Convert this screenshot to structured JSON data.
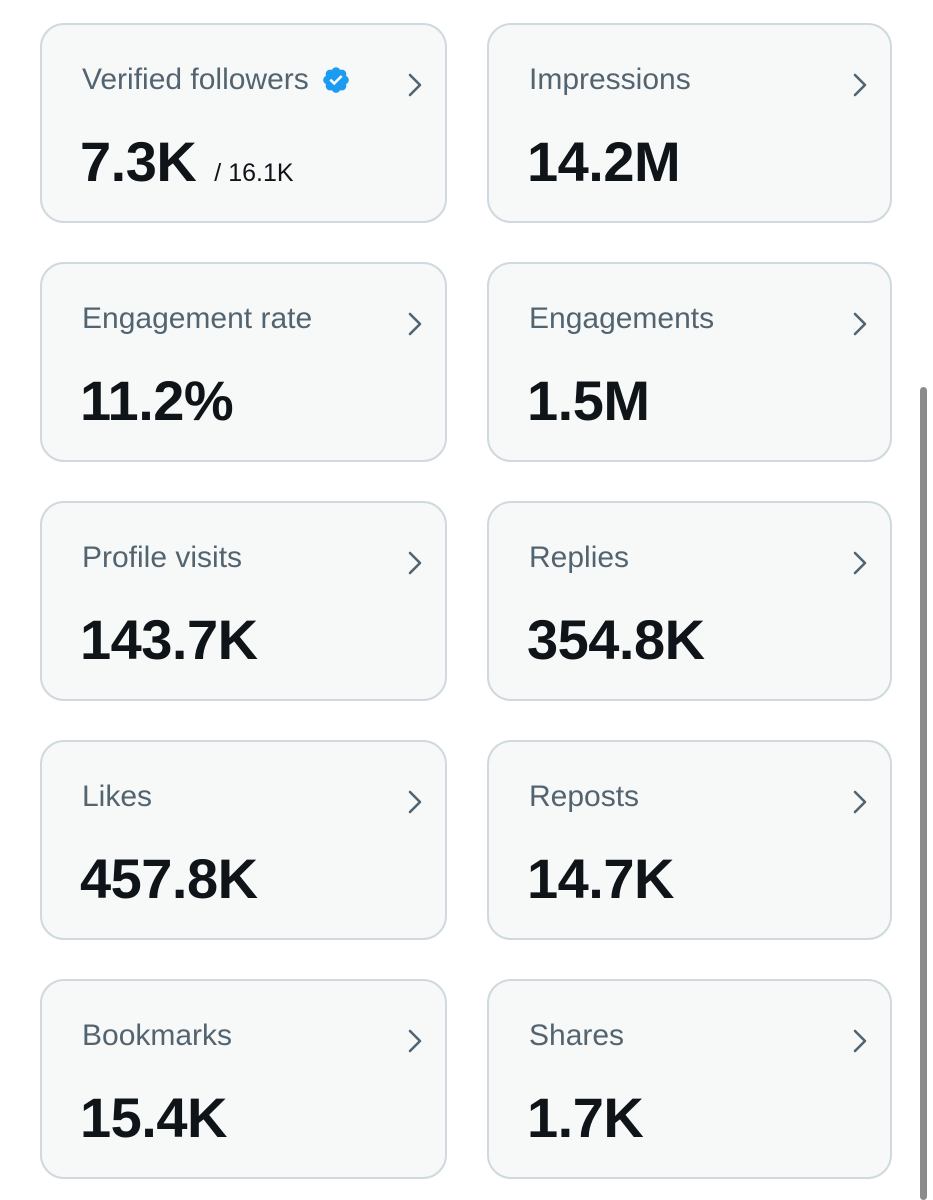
{
  "colors": {
    "card_bg": "#f7f9f9",
    "card_border": "#cfd9de",
    "label": "#536471",
    "value": "#0f1419",
    "verified_badge": "#1d9bf0"
  },
  "cards": [
    {
      "label": "Verified followers",
      "value": "7.3K",
      "sub": "/ 16.1K",
      "icon": "verified-badge-icon"
    },
    {
      "label": "Impressions",
      "value": "14.2M"
    },
    {
      "label": "Engagement rate",
      "value": "11.2%"
    },
    {
      "label": "Engagements",
      "value": "1.5M"
    },
    {
      "label": "Profile visits",
      "value": "143.7K"
    },
    {
      "label": "Replies",
      "value": "354.8K"
    },
    {
      "label": "Likes",
      "value": "457.8K"
    },
    {
      "label": "Reposts",
      "value": "14.7K"
    },
    {
      "label": "Bookmarks",
      "value": "15.4K"
    },
    {
      "label": "Shares",
      "value": "1.7K"
    }
  ]
}
